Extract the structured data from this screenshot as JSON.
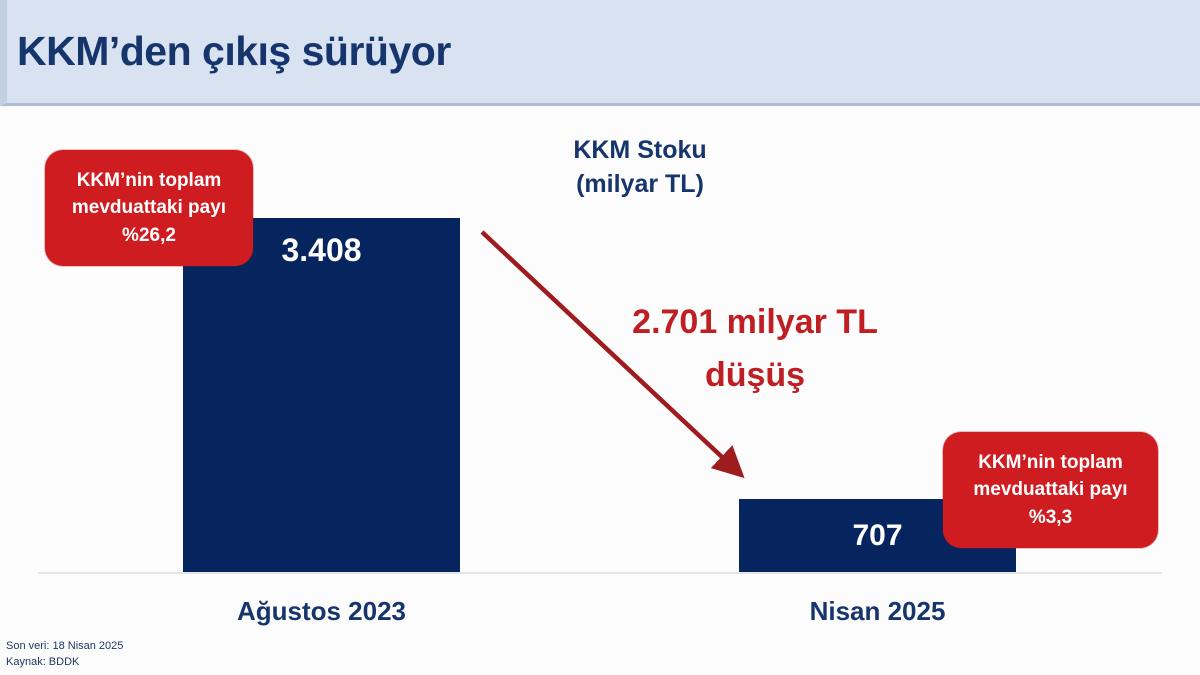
{
  "page": {
    "title": "KKM’den çıkış sürüyor"
  },
  "chart_data": {
    "type": "bar",
    "title": "KKM Stoku\n(milyar TL)",
    "categories": [
      "Ağustos 2023",
      "Nisan 2025"
    ],
    "values": [
      3408,
      707
    ],
    "value_labels": [
      "3.408",
      "707"
    ],
    "ylim": [
      0,
      3408
    ],
    "grid": false,
    "legend": false,
    "bar_color": "#06245e",
    "annotations": {
      "left_callout": "KKM’nin toplam\nmevduattaki payı\n%26,2",
      "right_callout": "KKM’nin toplam\nmevduattaki payı\n%3,3",
      "drop_text": "2.701 milyar TL\ndüşüş",
      "drop_value_milyar_tl": 2701
    }
  },
  "colors": {
    "header_bg": "#d9e2f0",
    "navy_text": "#17356d",
    "bar_navy": "#06245e",
    "callout_red": "#ce1c20",
    "arrow_red": "#9e1b1e",
    "drop_text_red": "#bf1e22"
  },
  "footnote": {
    "line1": "Son veri: 18 Nisan 2025",
    "line2": "Kaynak: BDDK"
  }
}
